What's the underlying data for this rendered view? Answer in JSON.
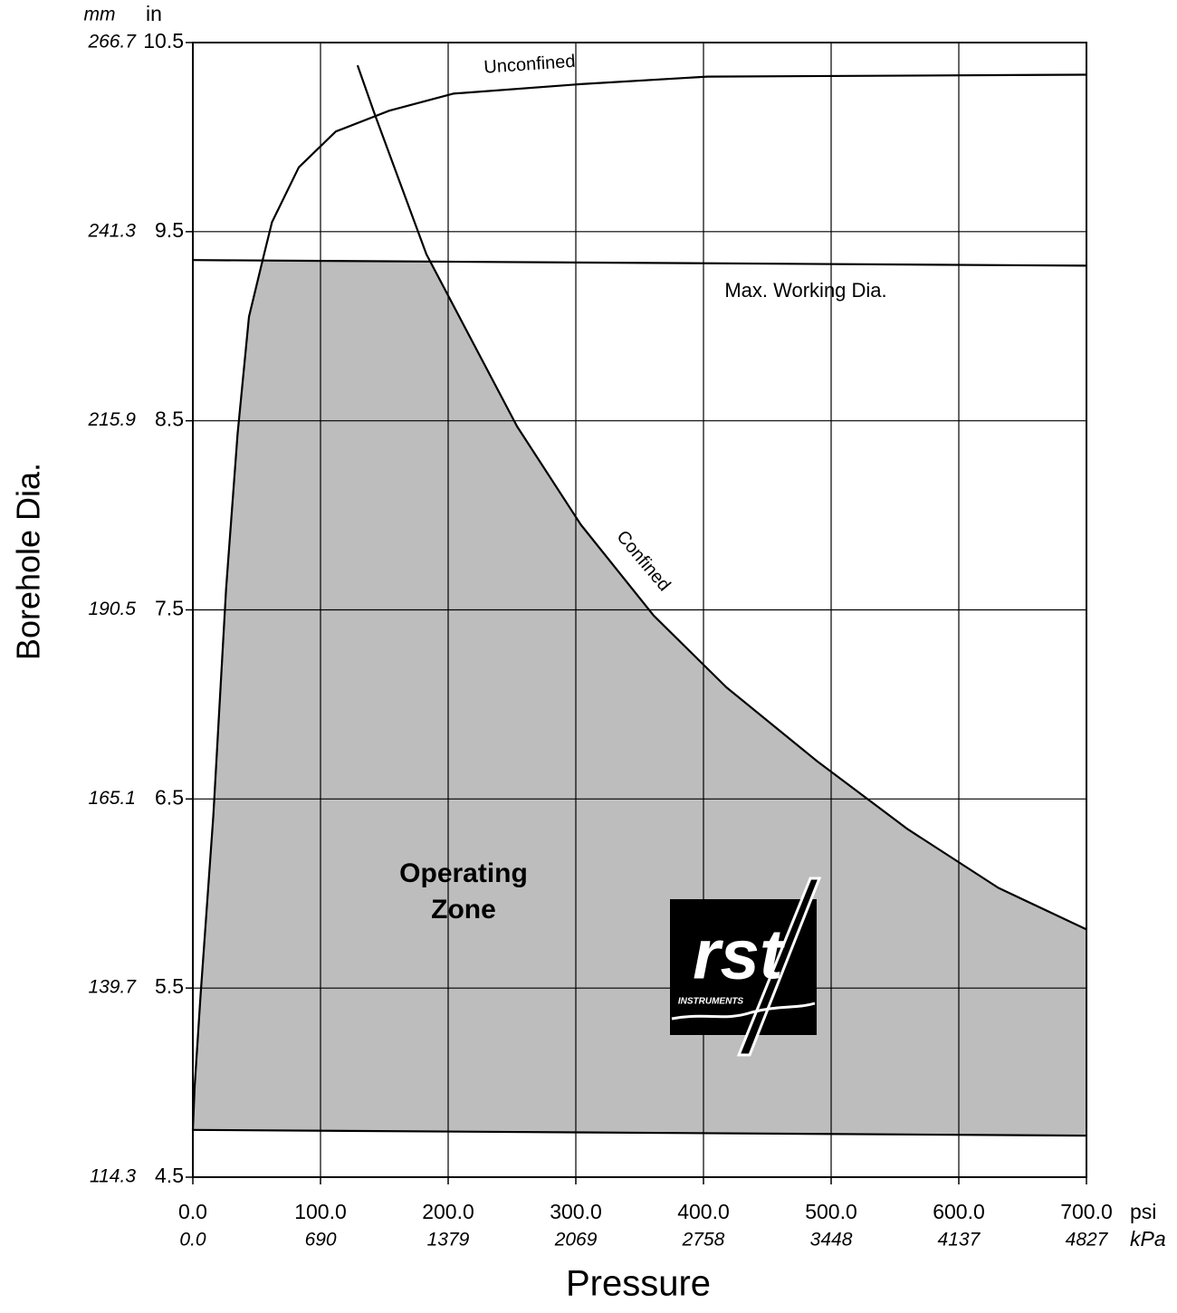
{
  "chart_data": {
    "type": "line",
    "x_label": "Pressure",
    "y_label": "Borehole Dia.",
    "x_unit": "psi",
    "x2_unit": "kPa",
    "y_unit": "in",
    "y2_unit": "mm",
    "xlim": [
      0,
      700
    ],
    "xticks": [
      {
        "value": 0,
        "label": "0.0"
      },
      {
        "value": 100,
        "label": "100.0"
      },
      {
        "value": 200,
        "label": "200.0"
      },
      {
        "value": 300,
        "label": "300.0"
      },
      {
        "value": 400,
        "label": "400.0"
      },
      {
        "value": 500,
        "label": "500.0"
      },
      {
        "value": 600,
        "label": "600.0"
      },
      {
        "value": 700,
        "label": "700.0"
      }
    ],
    "x2lim": [
      0,
      4827
    ],
    "x2ticks": [
      {
        "value": 0,
        "label": "0.0"
      },
      690,
      1379,
      2069,
      2758,
      3448,
      4137,
      4827
    ],
    "ylim": [
      4.5,
      10.5
    ],
    "yticks": [
      4.5,
      5.5,
      6.5,
      7.5,
      8.5,
      9.5,
      10.5
    ],
    "y2lim": [
      114.3,
      266.7
    ],
    "y2ticks": [
      114.3,
      139.7,
      165.1,
      190.5,
      215.9,
      241.3,
      266.7
    ],
    "grid": true,
    "series": [
      {
        "name": "Unconfined",
        "color": "#000000",
        "x": [
          0,
          1.4,
          6,
          16,
          26,
          35,
          44,
          55,
          62,
          83,
          112,
          154,
          204,
          304,
          403,
          700
        ],
        "values": [
          4.75,
          4.98,
          5.46,
          6.41,
          7.61,
          8.43,
          9.05,
          9.36,
          9.55,
          9.84,
          10.03,
          10.14,
          10.23,
          10.28,
          10.32,
          10.33
        ]
      },
      {
        "name": "Confined",
        "color": "#000000",
        "x": [
          129,
          142,
          183,
          254,
          304,
          361,
          418,
          489,
          560,
          631,
          700
        ],
        "values": [
          10.38,
          10.13,
          9.38,
          8.47,
          7.95,
          7.47,
          7.09,
          6.7,
          6.34,
          6.03,
          5.81
        ]
      },
      {
        "name": "Max. Working Dia.",
        "color": "#000000",
        "x": [
          0,
          700
        ],
        "values": [
          9.35,
          9.32
        ]
      },
      {
        "color": "#000000",
        "x": [
          0,
          700
        ],
        "values": [
          4.75,
          4.72
        ]
      }
    ],
    "zone_color": "#bdbdbd",
    "zone_label": [
      "Operating",
      "Zone"
    ],
    "logo": {
      "text": "rst",
      "subtext": "INSTRUMENTS"
    }
  }
}
